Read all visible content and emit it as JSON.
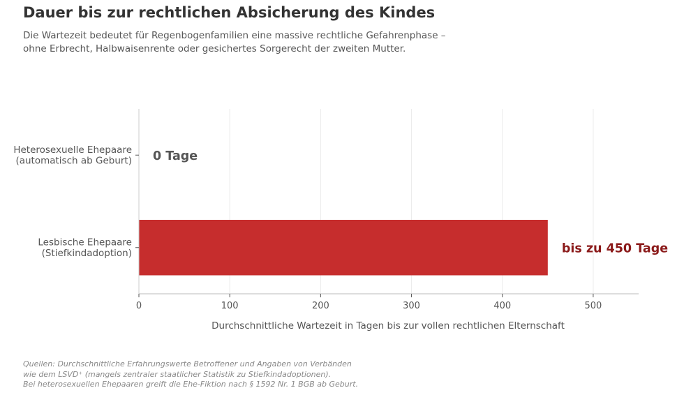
{
  "title": "Dauer bis zur rechtlichen Absicherung des Kindes",
  "subtitle": [
    "Die Wartezeit bedeutet für Regenbogenfamilien eine massive rechtliche Gefahrenphase –",
    "ohne Erbrecht, Halbwaisenrente oder gesichertes Sorgerecht der zweiten Mutter."
  ],
  "chart_data": {
    "type": "bar",
    "orientation": "horizontal",
    "categories": [
      [
        "Heterosexuelle Ehepaare",
        "(automatisch ab Geburt)"
      ],
      [
        "Lesbische Ehepaare",
        "(Stiefkindadoption)"
      ]
    ],
    "values": [
      0,
      450
    ],
    "data_labels": [
      "0 Tage",
      "bis zu 450 Tage"
    ],
    "colors": [
      "#555555",
      "#c62d2d"
    ],
    "label_colors": [
      "#555555",
      "#8b1a1a"
    ],
    "xlabel": "Durchschnittliche Wartezeit in Tagen bis zur vollen rechtlichen Elternschaft",
    "xlim": [
      0,
      550
    ],
    "xticks": [
      0,
      100,
      200,
      300,
      400,
      500
    ],
    "grid": true
  },
  "footer": [
    "Quellen: Durchschnittliche Erfahrungswerte Betroffener und Angaben von Verbänden",
    "wie dem LSVD⁺ (mangels zentraler staatlicher Statistik zu Stiefkindadoptionen).",
    "Bei heterosexuellen Ehepaaren greift die Ehe-Fiktion nach § 1592 Nr. 1 BGB ab Geburt."
  ]
}
